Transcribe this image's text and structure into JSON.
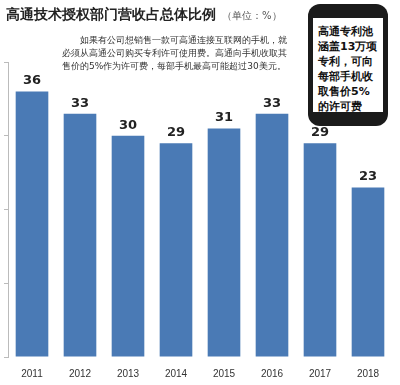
{
  "chart_data": {
    "type": "bar",
    "title": "高通技术授权部门营收占总体比例",
    "subtitle": "（单位：%）",
    "annotations": [
      "如果有公司想销售一款可高通连接互联网的手机，就必须从高通公司购买专利许可使用费。高通向手机收取其售价的5%作为许可费，每部手机最高可能超过30美元。",
      "高通专利池涵盖13万项专利，可向每部手机收取售价5%的许可费"
    ],
    "categories": [
      "2011",
      "2012",
      "2013",
      "2014",
      "2015",
      "2016",
      "2017",
      "2018"
    ],
    "values": [
      36,
      33,
      30,
      29,
      31,
      33,
      29,
      23
    ],
    "color": "#4a7ab5",
    "ylim": [
      0,
      40
    ],
    "yticks": [
      0,
      10,
      20,
      30,
      40
    ],
    "grid": false,
    "data_labels": true,
    "tick_labels": "x"
  }
}
